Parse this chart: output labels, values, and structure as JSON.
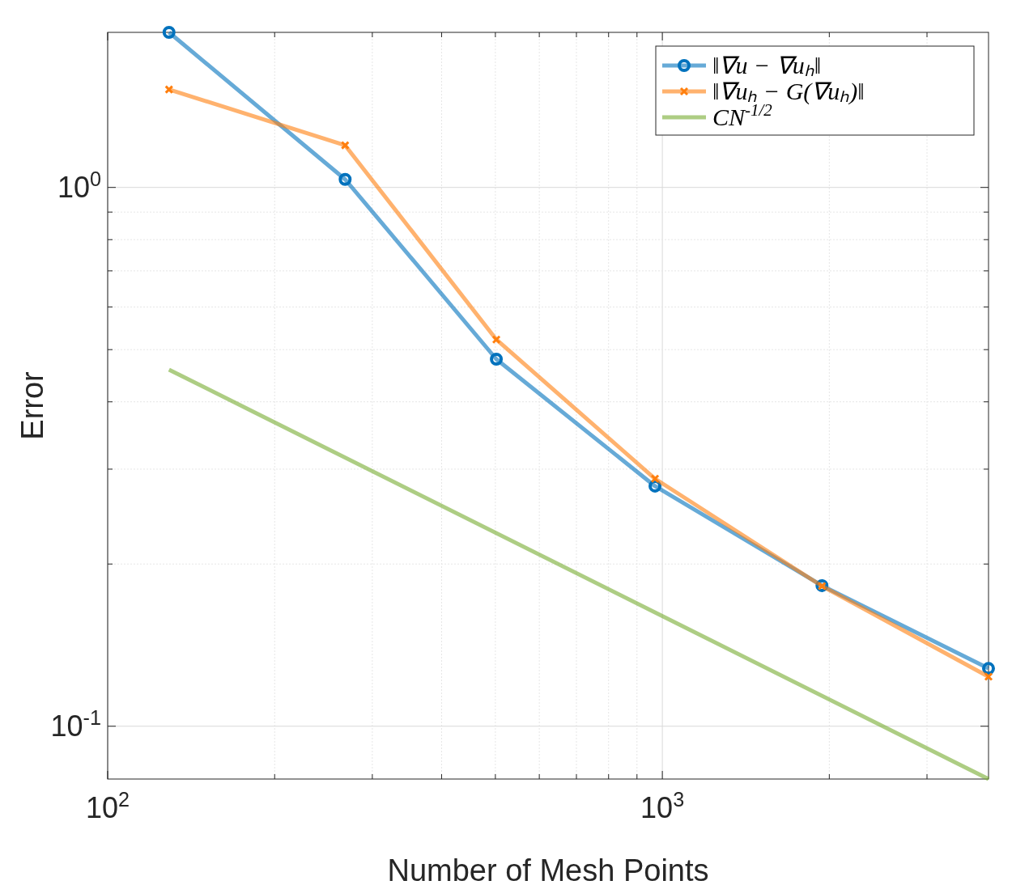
{
  "chart_data": {
    "type": "line",
    "xlabel": "Number of Mesh Points",
    "ylabel": "Error",
    "log": "xy",
    "grid": true,
    "legend": "top right",
    "xlim": [
      100,
      3873
    ],
    "ylim": [
      0.0798,
      1.94
    ],
    "xticks": [
      {
        "value": 100,
        "label": "10$^{2}$"
      },
      {
        "value": 200,
        "label": null
      },
      {
        "value": 300,
        "label": null
      },
      {
        "value": 400,
        "label": null
      },
      {
        "value": 500,
        "label": null
      },
      {
        "value": 600,
        "label": null
      },
      {
        "value": 700,
        "label": null
      },
      {
        "value": 800,
        "label": null
      },
      {
        "value": 900,
        "label": null
      },
      {
        "value": 1000,
        "label": "10$^{3}$"
      },
      {
        "value": 2000,
        "label": null
      },
      {
        "value": 3000,
        "label": null
      }
    ],
    "yticks": [
      {
        "value": 0.1,
        "label": "10$^{-1}$"
      },
      {
        "value": 0.2,
        "label": null
      },
      {
        "value": 0.3,
        "label": null
      },
      {
        "value": 0.4,
        "label": null
      },
      {
        "value": 0.5,
        "label": null
      },
      {
        "value": 0.6,
        "label": null
      },
      {
        "value": 0.7,
        "label": null
      },
      {
        "value": 0.8,
        "label": null
      },
      {
        "value": 0.9,
        "label": null
      },
      {
        "value": 1,
        "label": "10$^{0}$"
      }
    ],
    "series": [
      {
        "name": "‖∇u − ∇uₕ‖",
        "color": "#0072bd",
        "marker": "circle",
        "x": [
          129,
          268,
          502,
          970,
          1940,
          3873
        ],
        "values": [
          1.94,
          1.035,
          0.48,
          0.279,
          0.1824,
          0.128
        ]
      },
      {
        "name": "‖∇uₕ − G(∇uₕ)‖",
        "color": "#ff7f0e",
        "marker": "cross",
        "x": [
          129,
          268,
          502,
          970,
          1940,
          3873
        ],
        "values": [
          1.52,
          1.197,
          0.522,
          0.288,
          0.182,
          0.1236
        ]
      },
      {
        "name": "CN$^{-1/2}$",
        "color": "#77ac30",
        "marker": "none",
        "x": [
          129,
          3873
        ],
        "values": [
          0.459,
          0.0798
        ]
      }
    ]
  }
}
